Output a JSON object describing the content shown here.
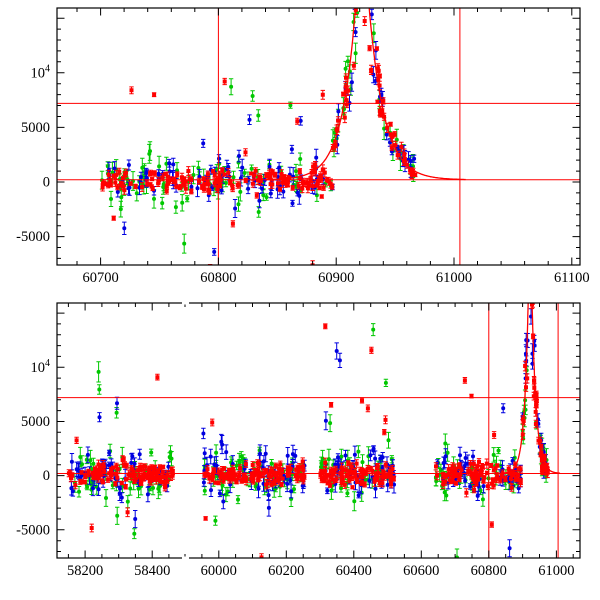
{
  "figure": {
    "kind": "two-panel astronomical light curve with flare model fit",
    "background": "#ffffff"
  },
  "colors": {
    "frame": "#000000",
    "ref_line": "#ff0000",
    "model_curve": "#ff0000",
    "series_red": "#ff0000",
    "series_green": "#00c800",
    "series_blue": "#0000e0"
  },
  "chart_data": {
    "type": "scatter",
    "title": "",
    "xlabel": "",
    "ylabel": "",
    "ylim": [
      -7600,
      15930
    ],
    "y_ticks": {
      "values": [
        -5000,
        0,
        5000,
        10000
      ],
      "labels": [
        "-5000",
        "0",
        "5000",
        "10^4"
      ]
    },
    "y_major_step": 5000,
    "y_minor_step": 1000,
    "series": [
      {
        "name": "green",
        "color": "#00c800",
        "marker": "dot",
        "sigma": 1150,
        "err_range": [
          260,
          950
        ],
        "weight": 0.75
      },
      {
        "name": "blue",
        "color": "#0000e0",
        "marker": "dot",
        "sigma": 950,
        "err_range": [
          240,
          850
        ],
        "weight": 0.75
      },
      {
        "name": "red",
        "color": "#ff0000",
        "marker": "square",
        "sigma": 520,
        "err_range": [
          130,
          430
        ],
        "weight": 1.55
      }
    ],
    "flare_model": {
      "t0": 60922,
      "amplitude": 25000,
      "tau_rise": 12,
      "tau_decay": 13,
      "baseline": 200,
      "draw_range": [
        60840,
        61010
      ]
    },
    "ref_lines": {
      "horizontal": [
        200,
        7200
      ],
      "vertical": [
        60800,
        61005
      ]
    },
    "panels": [
      {
        "id": "top",
        "segments": [
          {
            "xlim": [
              60663,
              61107
            ],
            "major_ticks": [
              60700,
              60800,
              60900,
              61000,
              61100
            ],
            "tick_labels": [
              "60700",
              "60800",
              "60900",
              "61000",
              "61100"
            ]
          }
        ],
        "x_major_step": 100,
        "x_minor_step": 20,
        "axis_break": false,
        "clusters": [
          {
            "x0": 60700,
            "x1": 60897,
            "n": 110,
            "outlier_frac": 0.055,
            "outlier_range": [
              2500,
              9500
            ]
          },
          {
            "x0": 60897,
            "x1": 60968,
            "n": 42,
            "flare": true
          }
        ]
      },
      {
        "id": "bottom",
        "segments": [
          {
            "xlim": [
              58116,
              58498
            ],
            "major_ticks": [
              58200,
              58400
            ],
            "tick_labels": [
              "58200",
              "58400"
            ]
          },
          {
            "xlim": [
              59900,
              61070
            ],
            "major_ticks": [
              60000,
              60200,
              60400,
              60600,
              60800,
              61000
            ],
            "tick_labels": [
              "60000",
              "60200",
              "60400",
              "60600",
              "60800",
              "61000"
            ]
          }
        ],
        "x_major_step": 200,
        "x_minor_step": 50,
        "axis_break": true,
        "clusters": [
          {
            "x0": 58150,
            "x1": 58462,
            "n": 80,
            "outlier_frac": 0.05,
            "outlier_range": [
              2500,
              10500
            ]
          },
          {
            "x0": 59952,
            "x1": 60258,
            "n": 75,
            "outlier_frac": 0.04,
            "outlier_range": [
              2500,
              8000
            ]
          },
          {
            "x0": 60300,
            "x1": 60520,
            "n": 62,
            "outlier_frac": 0.1,
            "outlier_range": [
              3000,
              15500
            ]
          },
          {
            "x0": 60640,
            "x1": 60897,
            "n": 60,
            "outlier_frac": 0.05,
            "outlier_range": [
              2500,
              9000
            ]
          },
          {
            "x0": 60897,
            "x1": 60975,
            "n": 38,
            "flare": true
          }
        ]
      }
    ],
    "seed": 20240917
  }
}
